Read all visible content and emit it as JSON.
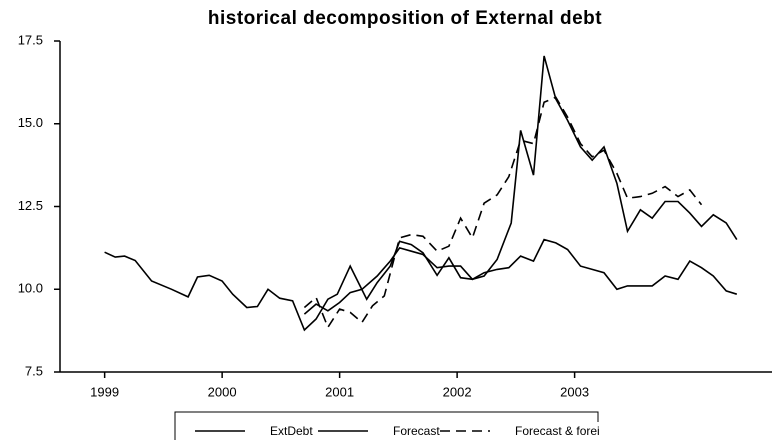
{
  "chart_data": {
    "type": "line",
    "title": "historical decomposition of External debt",
    "xlim": [
      1998.62,
      2004.68
    ],
    "ylim": [
      7.5,
      17.5
    ],
    "xticks": [
      1999,
      2000,
      2001,
      2002,
      2003
    ],
    "yticks": [
      7.5,
      {
        "value": 10,
        "label": "10.0"
      },
      12.5,
      {
        "value": 15,
        "label": "15.0"
      },
      17.5
    ],
    "series": [
      {
        "name": "ExtDebt",
        "color": "#000000",
        "style": "solid",
        "x": [
          1999.0,
          1999.09,
          1999.17,
          1999.26,
          1999.4,
          1999.57,
          1999.71,
          1999.79,
          1999.89,
          2000.0,
          2000.09,
          2000.21,
          2000.3,
          2000.39,
          2000.49,
          2000.6,
          2000.7,
          2000.8,
          2000.9,
          2000.98,
          2001.09,
          2001.23,
          2001.32,
          2001.43,
          2001.51,
          2001.61,
          2001.71,
          2001.83,
          2001.93,
          2002.03,
          2002.13,
          2002.23,
          2002.34,
          2002.46,
          2002.54,
          2002.65,
          2002.74,
          2002.84,
          2002.94,
          2003.05,
          2003.15,
          2003.25,
          2003.36,
          2003.45,
          2003.56,
          2003.66,
          2003.77,
          2003.88,
          2003.98,
          2004.08,
          2004.18,
          2004.29,
          2004.38
        ],
        "values": [
          11.12,
          10.97,
          11.0,
          10.87,
          10.25,
          10.0,
          9.77,
          10.37,
          10.42,
          10.25,
          9.85,
          9.45,
          9.48,
          10.0,
          9.73,
          9.65,
          8.77,
          9.1,
          9.7,
          9.85,
          10.7,
          9.7,
          10.2,
          10.7,
          11.45,
          11.35,
          11.1,
          10.42,
          10.95,
          10.35,
          10.3,
          10.4,
          10.9,
          12.0,
          14.8,
          13.45,
          17.05,
          15.75,
          15.1,
          14.3,
          13.9,
          14.3,
          13.2,
          11.75,
          12.4,
          12.15,
          12.65,
          12.65,
          12.3,
          11.9,
          12.25,
          12.0,
          11.5
        ]
      },
      {
        "name": "Forecast",
        "color": "#000000",
        "style": "solid",
        "x": [
          2000.7,
          2000.8,
          2000.9,
          2001.0,
          2001.09,
          2001.19,
          2001.32,
          2001.43,
          2001.51,
          2001.61,
          2001.71,
          2001.83,
          2001.93,
          2002.03,
          2002.13,
          2002.23,
          2002.34,
          2002.44,
          2002.54,
          2002.65,
          2002.74,
          2002.84,
          2002.94,
          2003.05,
          2003.15,
          2003.25,
          2003.36,
          2003.45,
          2003.56,
          2003.66,
          2003.77,
          2003.88,
          2003.98,
          2004.08,
          2004.18,
          2004.29,
          2004.38
        ],
        "values": [
          9.25,
          9.55,
          9.35,
          9.6,
          9.9,
          10.0,
          10.4,
          10.85,
          11.25,
          11.15,
          11.05,
          10.65,
          10.7,
          10.7,
          10.3,
          10.5,
          10.6,
          10.65,
          11.0,
          10.85,
          11.5,
          11.4,
          11.2,
          10.7,
          10.6,
          10.5,
          10.0,
          10.1,
          10.1,
          10.1,
          10.4,
          10.3,
          10.85,
          10.65,
          10.4,
          9.95,
          9.85
        ]
      },
      {
        "name": "Forecast & forei",
        "color": "#000000",
        "style": "dashed",
        "x": [
          2000.7,
          2000.8,
          2000.9,
          2001.0,
          2001.09,
          2001.19,
          2001.28,
          2001.38,
          2001.51,
          2001.61,
          2001.71,
          2001.83,
          2001.93,
          2002.03,
          2002.13,
          2002.23,
          2002.34,
          2002.44,
          2002.54,
          2002.65,
          2002.74,
          2002.84,
          2002.94,
          2003.05,
          2003.15,
          2003.25,
          2003.36,
          2003.45,
          2003.56,
          2003.66,
          2003.77,
          2003.88,
          2003.98,
          2004.08
        ],
        "values": [
          9.45,
          9.75,
          8.85,
          9.4,
          9.3,
          9.0,
          9.5,
          9.8,
          11.55,
          11.65,
          11.6,
          11.15,
          11.3,
          12.15,
          11.55,
          12.6,
          12.85,
          13.4,
          14.5,
          14.4,
          15.65,
          15.8,
          15.2,
          14.4,
          14.0,
          14.2,
          13.5,
          12.75,
          12.8,
          12.9,
          13.1,
          12.8,
          13.0,
          12.55
        ]
      }
    ]
  }
}
